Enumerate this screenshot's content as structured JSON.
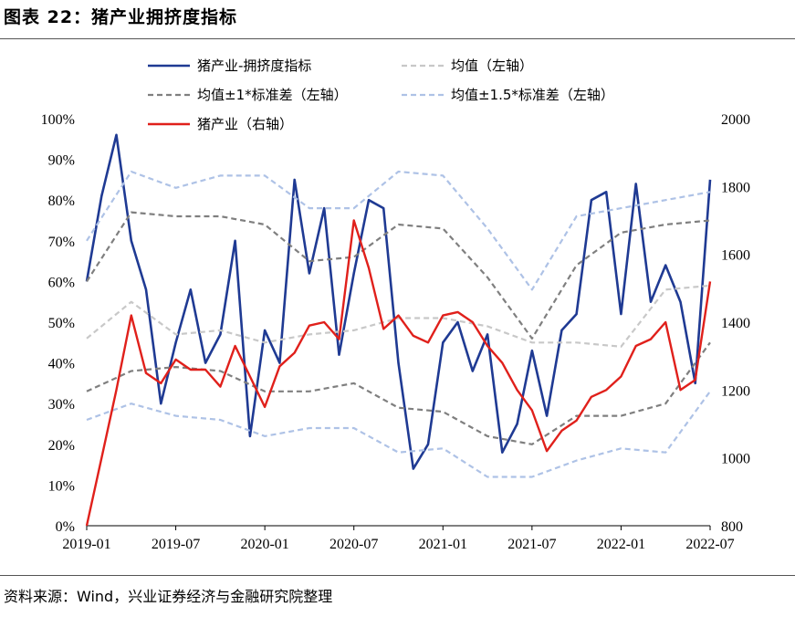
{
  "header": {
    "title": "图表 22：猪产业拥挤度指标"
  },
  "footer": {
    "source": "资料来源：Wind，兴业证券经济与金融研究院整理"
  },
  "colors": {
    "crowding": "#1f3a93",
    "mean": "#c8c8c8",
    "sd1": "#7f7f7f",
    "sd15": "#aec2e6",
    "industry": "#e0201b"
  },
  "chart_data": {
    "type": "line",
    "x_ticks": [
      "2019-01",
      "2019-07",
      "2020-01",
      "2020-07",
      "2021-01",
      "2021-07",
      "2022-01",
      "2022-07"
    ],
    "y_left": {
      "ticks": [
        "0%",
        "10%",
        "20%",
        "30%",
        "40%",
        "50%",
        "60%",
        "70%",
        "80%",
        "90%",
        "100%"
      ],
      "range": [
        0,
        100
      ]
    },
    "y_right": {
      "ticks": [
        "800",
        "1000",
        "1200",
        "1400",
        "1600",
        "1800",
        "2000"
      ],
      "range": [
        800,
        2000
      ]
    },
    "legend": [
      "猪产业-拥挤度指标",
      "均值（左轴）",
      "均值±1*标准差（左轴）",
      "均值±1.5*标准差（左轴）",
      "猪产业（右轴）"
    ],
    "series": [
      {
        "name": "猪产业-拥挤度指标",
        "axis": "left",
        "style": "solid-thick",
        "color": "#1f3a93",
        "x": [
          "2019-01",
          "2019-02",
          "2019-03",
          "2019-04",
          "2019-05",
          "2019-06",
          "2019-07",
          "2019-08",
          "2019-09",
          "2019-10",
          "2019-11",
          "2019-12",
          "2020-01",
          "2020-02",
          "2020-03",
          "2020-04",
          "2020-05",
          "2020-06",
          "2020-07",
          "2020-08",
          "2020-09",
          "2020-10",
          "2020-11",
          "2020-12",
          "2021-01",
          "2021-02",
          "2021-03",
          "2021-04",
          "2021-05",
          "2021-06",
          "2021-07",
          "2021-08",
          "2021-09",
          "2021-10",
          "2021-11",
          "2021-12",
          "2022-01",
          "2022-02",
          "2022-03",
          "2022-04",
          "2022-05",
          "2022-06",
          "2022-07"
        ],
        "y": [
          60,
          81,
          96,
          70,
          58,
          30,
          45,
          58,
          40,
          47,
          70,
          22,
          48,
          40,
          85,
          62,
          78,
          42,
          62,
          80,
          78,
          40,
          14,
          20,
          45,
          50,
          38,
          47,
          18,
          25,
          43,
          27,
          48,
          52,
          80,
          82,
          52,
          84,
          55,
          64,
          55,
          35,
          85
        ]
      },
      {
        "name": "均值（左轴）",
        "axis": "left",
        "style": "dashed",
        "color": "#c8c8c8",
        "x": [
          "2019-01",
          "2019-04",
          "2019-07",
          "2019-10",
          "2020-01",
          "2020-04",
          "2020-07",
          "2020-10",
          "2021-01",
          "2021-04",
          "2021-07",
          "2021-10",
          "2022-01",
          "2022-04",
          "2022-07"
        ],
        "y": [
          46,
          55,
          47,
          48,
          45,
          47,
          48,
          51,
          51,
          49,
          45,
          45,
          44,
          58,
          59
        ]
      },
      {
        "name": "均值±1*标准差（左轴）",
        "axis": "left",
        "style": "dashed",
        "color": "#7f7f7f",
        "x": [
          "2019-01",
          "2019-04",
          "2019-07",
          "2019-10",
          "2020-01",
          "2020-04",
          "2020-07",
          "2020-10",
          "2021-01",
          "2021-04",
          "2021-07",
          "2021-10",
          "2022-01",
          "2022-04",
          "2022-07"
        ],
        "y": [
          60,
          77,
          76,
          76,
          74,
          65,
          66,
          74,
          73,
          61,
          46,
          64,
          72,
          74,
          75
        ]
      },
      {
        "name": "均值±1*标准差（左轴）",
        "axis": "left",
        "style": "dashed",
        "color": "#7f7f7f",
        "x": [
          "2019-01",
          "2019-04",
          "2019-07",
          "2019-10",
          "2020-01",
          "2020-04",
          "2020-07",
          "2020-10",
          "2021-01",
          "2021-04",
          "2021-07",
          "2021-10",
          "2022-01",
          "2022-04",
          "2022-07"
        ],
        "y": [
          33,
          38,
          39,
          38,
          33,
          33,
          35,
          29,
          28,
          22,
          20,
          27,
          27,
          30,
          45
        ]
      },
      {
        "name": "均值±1.5*标准差（左轴）",
        "axis": "left",
        "style": "dashed",
        "color": "#aec2e6",
        "x": [
          "2019-01",
          "2019-04",
          "2019-07",
          "2019-10",
          "2020-01",
          "2020-04",
          "2020-07",
          "2020-10",
          "2021-01",
          "2021-04",
          "2021-07",
          "2021-10",
          "2022-01",
          "2022-04",
          "2022-07"
        ],
        "y": [
          70,
          87,
          83,
          86,
          86,
          78,
          78,
          87,
          86,
          73,
          58,
          76,
          78,
          80,
          82
        ]
      },
      {
        "name": "均值±1.5*标准差（左轴）",
        "axis": "left",
        "style": "dashed",
        "color": "#aec2e6",
        "x": [
          "2019-01",
          "2019-04",
          "2019-07",
          "2019-10",
          "2020-01",
          "2020-04",
          "2020-07",
          "2020-10",
          "2021-01",
          "2021-04",
          "2021-07",
          "2021-10",
          "2022-01",
          "2022-04",
          "2022-07"
        ],
        "y": [
          26,
          30,
          27,
          26,
          22,
          24,
          24,
          18,
          19,
          12,
          12,
          16,
          19,
          18,
          33
        ]
      },
      {
        "name": "猪产业（右轴）",
        "axis": "right",
        "style": "solid",
        "color": "#e0201b",
        "x": [
          "2019-01",
          "2019-02",
          "2019-03",
          "2019-04",
          "2019-05",
          "2019-06",
          "2019-07",
          "2019-08",
          "2019-09",
          "2019-10",
          "2019-11",
          "2019-12",
          "2020-01",
          "2020-02",
          "2020-03",
          "2020-04",
          "2020-05",
          "2020-06",
          "2020-07",
          "2020-08",
          "2020-09",
          "2020-10",
          "2020-11",
          "2020-12",
          "2021-01",
          "2021-02",
          "2021-03",
          "2021-04",
          "2021-05",
          "2021-06",
          "2021-07",
          "2021-08",
          "2021-09",
          "2021-10",
          "2021-11",
          "2021-12",
          "2022-01",
          "2022-02",
          "2022-03",
          "2022-04",
          "2022-05",
          "2022-06",
          "2022-07"
        ],
        "y": [
          800,
          1000,
          1200,
          1420,
          1250,
          1220,
          1290,
          1260,
          1260,
          1210,
          1330,
          1240,
          1150,
          1270,
          1310,
          1390,
          1400,
          1350,
          1700,
          1560,
          1380,
          1420,
          1360,
          1340,
          1420,
          1430,
          1400,
          1330,
          1280,
          1200,
          1140,
          1020,
          1080,
          1110,
          1180,
          1200,
          1240,
          1330,
          1350,
          1400,
          1200,
          1230,
          1520
        ]
      }
    ]
  }
}
